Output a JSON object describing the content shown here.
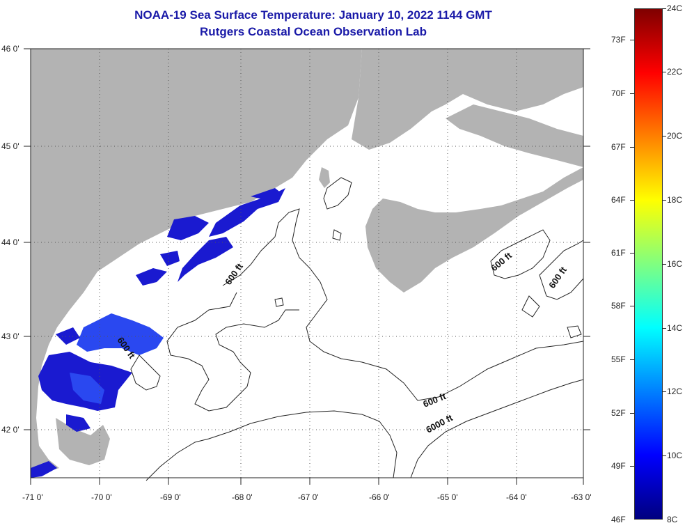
{
  "title": {
    "line1": "NOAA-19 Sea Surface Temperature:  January 10, 2022 1144 GMT",
    "line2": "Rutgers Coastal Ocean Observation Lab"
  },
  "map": {
    "lon_labels": [
      "-71 0'",
      "-70 0'",
      "-69 0'",
      "-68 0'",
      "-67 0'",
      "-66 0'",
      "-65 0'",
      "-64 0'",
      "-63 0'"
    ],
    "lat_labels": [
      "46 0'",
      "45 0'",
      "44 0'",
      "43 0'",
      "42 0'"
    ],
    "contour_labels": [
      "600 ft",
      "600 ft",
      "600 ft",
      "600 ft",
      "600 ft",
      "6000 ft"
    ],
    "colors": {
      "land": "#b3b3b3",
      "water": "#ffffff",
      "sst_dark": "#1a1ad0",
      "sst_light": "#2a48f0",
      "grid": "#555555",
      "contour": "#222222"
    }
  },
  "colorbar": {
    "celsius_labels": [
      "24C",
      "22C",
      "20C",
      "18C",
      "16C",
      "14C",
      "12C",
      "10C",
      "8C"
    ],
    "fahrenheit_labels": [
      "73F",
      "70F",
      "67F",
      "64F",
      "61F",
      "58F",
      "55F",
      "52F",
      "49F",
      "46F"
    ],
    "gradient_colors": [
      "#7f0000",
      "#ff0000",
      "#ff8000",
      "#ffff00",
      "#80ff80",
      "#00ffff",
      "#0080ff",
      "#0000ff",
      "#00007f"
    ]
  }
}
